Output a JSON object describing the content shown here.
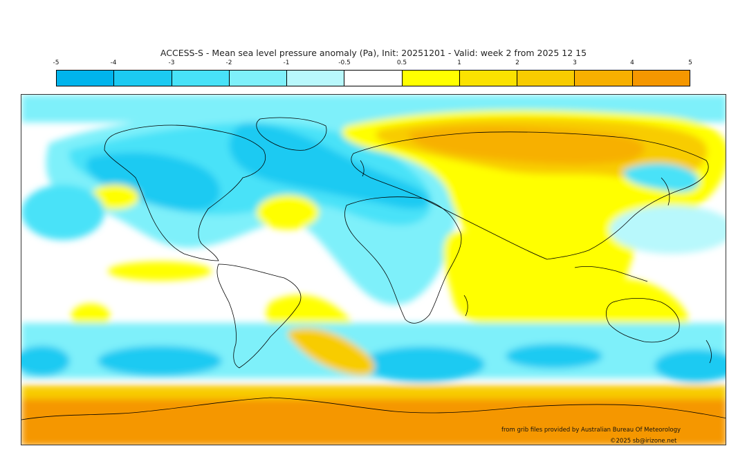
{
  "title": "ACCESS-S - Mean sea level pressure anomaly (Pa), Init: 20251201 - Valid: week 2 from 2025 12 15",
  "colorbar": {
    "ticks": [
      "-5",
      "-4",
      "-3",
      "-2",
      "-1",
      "-0.5",
      "0.5",
      "1",
      "2",
      "3",
      "4",
      "5"
    ],
    "colors": [
      "#00b4ec",
      "#1ccaf2",
      "#48e2f8",
      "#7ef0fa",
      "#b8f8fc",
      "#ffffff",
      "#ffff00",
      "#fbe200",
      "#f8cc00",
      "#f7b000",
      "#f59700"
    ]
  },
  "credits": {
    "source": "from grib files provided by Australian Bureau Of Meteorology",
    "copyright": "©2025 sb@irizone.net"
  }
}
